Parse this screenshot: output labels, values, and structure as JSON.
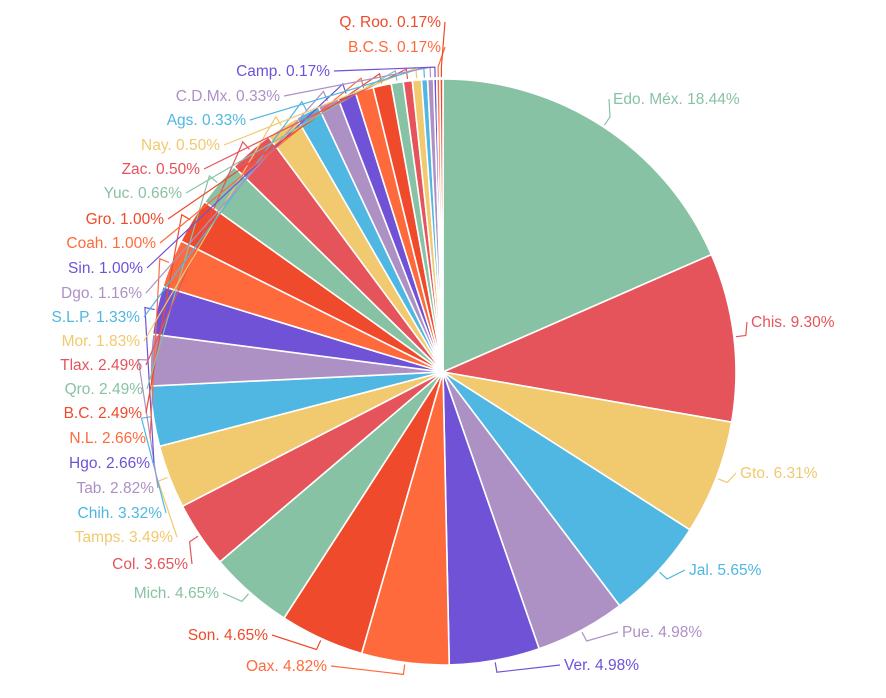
{
  "chart_data": {
    "type": "pie",
    "title": "",
    "legend": "none",
    "slices": [
      {
        "name": "Edo. Méx.",
        "value": 18.44,
        "label": "Edo. Méx. 18.44%",
        "color": "#88c2a5"
      },
      {
        "name": "Chis.",
        "value": 9.3,
        "label": "Chis. 9.30%",
        "color": "#e5545b"
      },
      {
        "name": "Gto.",
        "value": 6.31,
        "label": "Gto. 6.31%",
        "color": "#f1c96e"
      },
      {
        "name": "Jal.",
        "value": 5.65,
        "label": "Jal. 5.65%",
        "color": "#4fb7e2"
      },
      {
        "name": "Pue.",
        "value": 4.98,
        "label": "Pue. 4.98%",
        "color": "#ad91c5"
      },
      {
        "name": "Ver.",
        "value": 4.98,
        "label": "Ver. 4.98%",
        "color": "#6f52d6"
      },
      {
        "name": "Oax.",
        "value": 4.82,
        "label": "Oax. 4.82%",
        "color": "#ff6a3d"
      },
      {
        "name": "Son.",
        "value": 4.65,
        "label": "Son. 4.65%",
        "color": "#ef4a2b"
      },
      {
        "name": "Mich.",
        "value": 4.65,
        "label": "Mich. 4.65%",
        "color": "#88c2a5"
      },
      {
        "name": "Col.",
        "value": 3.65,
        "label": "Col. 3.65%",
        "color": "#e5545b"
      },
      {
        "name": "Tamps.",
        "value": 3.49,
        "label": "Tamps. 3.49%",
        "color": "#f1c96e"
      },
      {
        "name": "Chih.",
        "value": 3.32,
        "label": "Chih. 3.32%",
        "color": "#4fb7e2"
      },
      {
        "name": "Tab.",
        "value": 2.82,
        "label": "Tab. 2.82%",
        "color": "#ad91c5"
      },
      {
        "name": "Hgo.",
        "value": 2.66,
        "label": "Hgo. 2.66%",
        "color": "#6f52d6"
      },
      {
        "name": "N.L.",
        "value": 2.66,
        "label": "N.L. 2.66%",
        "color": "#ff6a3d"
      },
      {
        "name": "B.C.",
        "value": 2.49,
        "label": "B.C. 2.49%",
        "color": "#ef4a2b"
      },
      {
        "name": "Qro.",
        "value": 2.49,
        "label": "Qro. 2.49%",
        "color": "#88c2a5"
      },
      {
        "name": "Tlax.",
        "value": 2.49,
        "label": "Tlax. 2.49%",
        "color": "#e5545b"
      },
      {
        "name": "Mor.",
        "value": 1.83,
        "label": "Mor. 1.83%",
        "color": "#f1c96e"
      },
      {
        "name": "S.L.P.",
        "value": 1.33,
        "label": "S.L.P. 1.33%",
        "color": "#4fb7e2"
      },
      {
        "name": "Dgo.",
        "value": 1.16,
        "label": "Dgo. 1.16%",
        "color": "#ad91c5"
      },
      {
        "name": "Sin.",
        "value": 1.0,
        "label": "Sin. 1.00%",
        "color": "#6f52d6"
      },
      {
        "name": "Coah.",
        "value": 1.0,
        "label": "Coah. 1.00%",
        "color": "#ff6a3d"
      },
      {
        "name": "Gro.",
        "value": 1.0,
        "label": "Gro. 1.00%",
        "color": "#ef4a2b"
      },
      {
        "name": "Yuc.",
        "value": 0.66,
        "label": "Yuc. 0.66%",
        "color": "#88c2a5"
      },
      {
        "name": "Zac.",
        "value": 0.5,
        "label": "Zac. 0.50%",
        "color": "#e5545b"
      },
      {
        "name": "Nay.",
        "value": 0.5,
        "label": "Nay. 0.50%",
        "color": "#f1c96e"
      },
      {
        "name": "Ags.",
        "value": 0.33,
        "label": "Ags. 0.33%",
        "color": "#4fb7e2"
      },
      {
        "name": "C.D.Mx.",
        "value": 0.33,
        "label": "C.D.Mx. 0.33%",
        "color": "#ad91c5"
      },
      {
        "name": "Camp.",
        "value": 0.17,
        "label": "Camp. 0.17%",
        "color": "#6f52d6"
      },
      {
        "name": "B.C.S.",
        "value": 0.17,
        "label": "B.C.S. 0.17%",
        "color": "#ff6a3d"
      },
      {
        "name": "Q. Roo.",
        "value": 0.17,
        "label": "Q. Roo. 0.17%",
        "color": "#ef4a2b"
      }
    ]
  }
}
